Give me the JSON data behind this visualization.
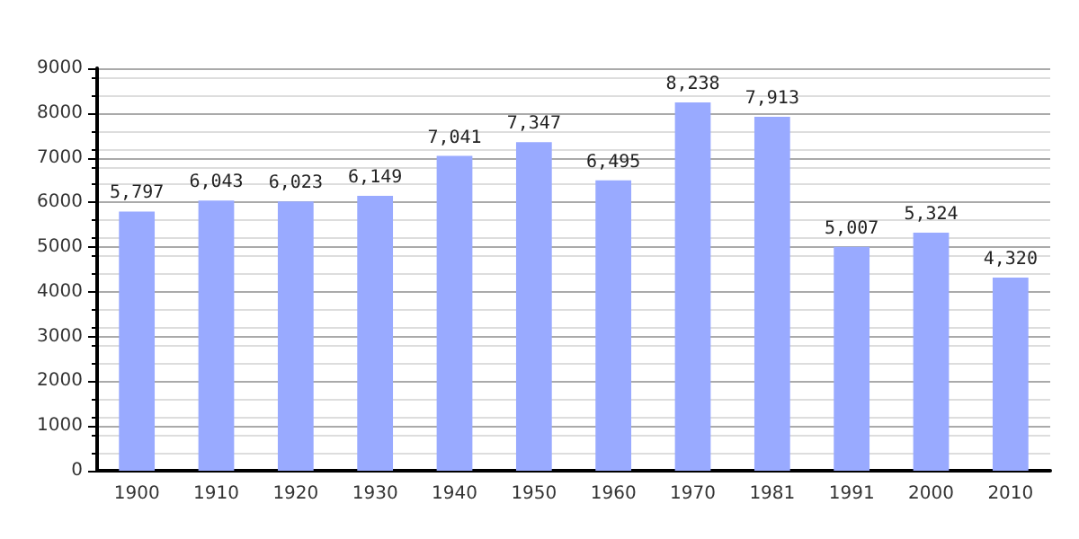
{
  "chart_data": {
    "type": "bar",
    "categories": [
      "1900",
      "1910",
      "1920",
      "1930",
      "1940",
      "1950",
      "1960",
      "1970",
      "1981",
      "1991",
      "2000",
      "2010"
    ],
    "values": [
      5797,
      6043,
      6023,
      6149,
      7041,
      7347,
      6495,
      8238,
      7913,
      5007,
      5324,
      4320
    ],
    "value_labels": [
      "5,797",
      "6,043",
      "6,023",
      "6,149",
      "7,041",
      "7,347",
      "6,495",
      "8,238",
      "7,913",
      "5,007",
      "5,324",
      "4,320"
    ],
    "color": "#99aaff",
    "ylim": [
      0,
      9000
    ],
    "yticks": [
      0,
      1000,
      2000,
      3000,
      4000,
      5000,
      6000,
      7000,
      8000,
      9000
    ],
    "grid": "y"
  }
}
